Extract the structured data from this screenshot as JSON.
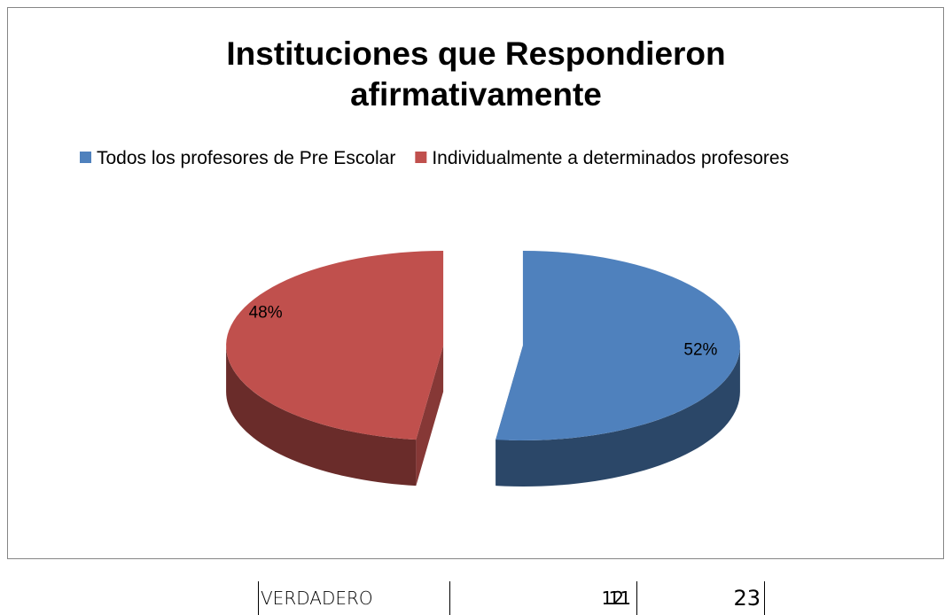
{
  "chart_data": {
    "type": "pie",
    "title": "Instituciones que Respondieron afirmativamente",
    "categories": [
      "Todos los profesores de Pre Escolar",
      "Individualmente a determinados profesores"
    ],
    "values": [
      52,
      48
    ],
    "value_labels": [
      "52%",
      "48%"
    ],
    "colors": [
      "#4f81bd",
      "#c0504d"
    ],
    "legend": "top"
  },
  "table": {
    "rows": [
      [
        "VERDADERO",
        12,
        11,
        23
      ]
    ]
  }
}
